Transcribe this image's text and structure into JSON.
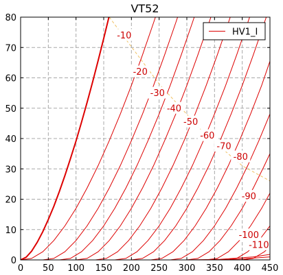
{
  "chart_data": {
    "type": "line",
    "title": "VT52",
    "xlabel": "",
    "ylabel": "",
    "xlim": [
      0,
      450
    ],
    "ylim": [
      0,
      80
    ],
    "x_ticks": [
      0,
      50,
      100,
      150,
      200,
      250,
      300,
      350,
      400,
      450
    ],
    "y_ticks": [
      0,
      10,
      20,
      30,
      40,
      50,
      60,
      70,
      80
    ],
    "grid": true,
    "legend": {
      "placement": "top-right",
      "entries": [
        "HV1_I"
      ]
    },
    "colors": {
      "curve": "#dd0000",
      "grid": "#a8a8a8",
      "load_line": "#f0c060"
    },
    "series": [
      {
        "grid_bias": "0",
        "points": [
          [
            0,
            0
          ],
          [
            10,
            0.9
          ],
          [
            20,
            2.9
          ],
          [
            30,
            5.8
          ],
          [
            40,
            9.3
          ],
          [
            50,
            13.3
          ],
          [
            60,
            17.7
          ],
          [
            70,
            22.6
          ],
          [
            80,
            27.8
          ],
          [
            90,
            33.4
          ],
          [
            100,
            39.2
          ],
          [
            110,
            45.4
          ],
          [
            120,
            51.9
          ],
          [
            130,
            58.7
          ],
          [
            140,
            65.7
          ],
          [
            150,
            73.0
          ],
          [
            160,
            80.5
          ]
        ]
      },
      {
        "grid_bias": "-10",
        "label": "-10",
        "points": [
          [
            0,
            0
          ],
          [
            20,
            0.5
          ],
          [
            40,
            2.7
          ],
          [
            60,
            6.4
          ],
          [
            80,
            11.2
          ],
          [
            100,
            17.0
          ],
          [
            120,
            23.7
          ],
          [
            140,
            31.1
          ],
          [
            160,
            39.3
          ],
          [
            180,
            48.1
          ],
          [
            200,
            57.5
          ],
          [
            220,
            67.6
          ],
          [
            240,
            78.2
          ],
          [
            245,
            80.9
          ]
        ]
      },
      {
        "grid_bias": "-20",
        "label": "-20",
        "points": [
          [
            40,
            0
          ],
          [
            60,
            0.5
          ],
          [
            80,
            2.7
          ],
          [
            100,
            6.4
          ],
          [
            120,
            11.2
          ],
          [
            140,
            17.0
          ],
          [
            160,
            23.7
          ],
          [
            180,
            31.1
          ],
          [
            200,
            39.3
          ],
          [
            220,
            48.1
          ],
          [
            240,
            57.5
          ],
          [
            260,
            67.6
          ],
          [
            280,
            78.2
          ],
          [
            285,
            80.9
          ]
        ]
      },
      {
        "grid_bias": "-30",
        "label": "-30",
        "points": [
          [
            70,
            0
          ],
          [
            90,
            0.5
          ],
          [
            110,
            2.7
          ],
          [
            130,
            6.4
          ],
          [
            150,
            11.2
          ],
          [
            170,
            17.0
          ],
          [
            190,
            23.7
          ],
          [
            210,
            31.1
          ],
          [
            230,
            39.3
          ],
          [
            250,
            48.1
          ],
          [
            270,
            57.5
          ],
          [
            290,
            67.6
          ],
          [
            310,
            78.2
          ],
          [
            315,
            80.9
          ]
        ]
      },
      {
        "grid_bias": "-40",
        "label": "-40",
        "points": [
          [
            100,
            0
          ],
          [
            120,
            0.5
          ],
          [
            140,
            2.7
          ],
          [
            160,
            6.4
          ],
          [
            180,
            11.2
          ],
          [
            200,
            17.0
          ],
          [
            220,
            23.7
          ],
          [
            240,
            31.1
          ],
          [
            260,
            39.3
          ],
          [
            280,
            48.1
          ],
          [
            300,
            57.5
          ],
          [
            320,
            67.6
          ],
          [
            340,
            78.2
          ],
          [
            345,
            80.9
          ]
        ]
      },
      {
        "grid_bias": "-50",
        "label": "-50",
        "points": [
          [
            135,
            0
          ],
          [
            155,
            0.5
          ],
          [
            175,
            2.7
          ],
          [
            195,
            6.4
          ],
          [
            215,
            11.2
          ],
          [
            235,
            17.0
          ],
          [
            255,
            23.7
          ],
          [
            275,
            31.1
          ],
          [
            295,
            39.3
          ],
          [
            315,
            48.1
          ],
          [
            335,
            57.5
          ],
          [
            355,
            67.6
          ],
          [
            375,
            78.2
          ],
          [
            380,
            80.9
          ]
        ]
      },
      {
        "grid_bias": "-60",
        "label": "-60",
        "points": [
          [
            170,
            0
          ],
          [
            190,
            0.5
          ],
          [
            210,
            2.7
          ],
          [
            230,
            6.4
          ],
          [
            250,
            11.2
          ],
          [
            270,
            17.0
          ],
          [
            290,
            23.7
          ],
          [
            310,
            31.1
          ],
          [
            330,
            39.3
          ],
          [
            350,
            48.1
          ],
          [
            370,
            57.5
          ],
          [
            390,
            67.6
          ],
          [
            410,
            78.2
          ],
          [
            415,
            80.9
          ]
        ]
      },
      {
        "grid_bias": "-70",
        "label": "-70",
        "points": [
          [
            200,
            0
          ],
          [
            220,
            0.5
          ],
          [
            240,
            2.7
          ],
          [
            260,
            6.4
          ],
          [
            280,
            11.2
          ],
          [
            300,
            17.0
          ],
          [
            320,
            23.7
          ],
          [
            340,
            31.1
          ],
          [
            360,
            39.3
          ],
          [
            380,
            48.1
          ],
          [
            400,
            57.5
          ],
          [
            420,
            67.6
          ],
          [
            440,
            78.2
          ],
          [
            445,
            80.9
          ]
        ]
      },
      {
        "grid_bias": "-80",
        "label": "-80",
        "points": [
          [
            235,
            0
          ],
          [
            255,
            0.5
          ],
          [
            275,
            2.7
          ],
          [
            295,
            6.4
          ],
          [
            315,
            11.2
          ],
          [
            335,
            17.0
          ],
          [
            355,
            23.7
          ],
          [
            375,
            31.1
          ],
          [
            395,
            39.3
          ],
          [
            415,
            48.1
          ],
          [
            435,
            57.5
          ],
          [
            450,
            65.5
          ]
        ]
      },
      {
        "grid_bias": "-90",
        "label": "-90",
        "points": [
          [
            270,
            0
          ],
          [
            290,
            0.5
          ],
          [
            310,
            2.7
          ],
          [
            330,
            6.4
          ],
          [
            350,
            11.2
          ],
          [
            370,
            17.0
          ],
          [
            390,
            23.7
          ],
          [
            410,
            31.1
          ],
          [
            430,
            39.3
          ],
          [
            450,
            48.1
          ]
        ]
      },
      {
        "grid_bias": "-100",
        "label": "-100",
        "points": [
          [
            300,
            0
          ],
          [
            320,
            0.5
          ],
          [
            340,
            2.7
          ],
          [
            360,
            6.4
          ],
          [
            380,
            11.2
          ],
          [
            400,
            17.0
          ],
          [
            420,
            23.7
          ],
          [
            440,
            31.1
          ],
          [
            450,
            35.0
          ]
        ]
      },
      {
        "grid_bias": "-110",
        "label": "-110",
        "points": [
          [
            335,
            0
          ],
          [
            355,
            0.5
          ],
          [
            375,
            2.7
          ],
          [
            395,
            6.4
          ],
          [
            415,
            11.2
          ],
          [
            435,
            17.0
          ],
          [
            450,
            22.0
          ]
        ]
      },
      {
        "grid_bias": "-120",
        "points": [
          [
            370,
            0
          ],
          [
            390,
            0.5
          ],
          [
            410,
            2.7
          ],
          [
            430,
            6.4
          ],
          [
            450,
            11.2
          ]
        ]
      },
      {
        "grid_bias": "-130",
        "points": [
          [
            400,
            0
          ],
          [
            420,
            0.5
          ],
          [
            440,
            2.7
          ],
          [
            450,
            4.4
          ]
        ]
      },
      {
        "grid_bias": "-140",
        "points": [
          [
            300,
            0
          ],
          [
            360,
            0.2
          ],
          [
            420,
            1.0
          ],
          [
            450,
            1.8
          ]
        ]
      },
      {
        "grid_bias": "-150",
        "points": [
          [
            330,
            0
          ],
          [
            390,
            0.2
          ],
          [
            450,
            1.0
          ]
        ]
      }
    ],
    "curve_labels": [
      {
        "text": "-10",
        "x": 187,
        "y": 74
      },
      {
        "text": "-20",
        "x": 216,
        "y": 62
      },
      {
        "text": "-30",
        "x": 247,
        "y": 55
      },
      {
        "text": "-40",
        "x": 277,
        "y": 50
      },
      {
        "text": "-50",
        "x": 307,
        "y": 45.5
      },
      {
        "text": "-60",
        "x": 337,
        "y": 41
      },
      {
        "text": "-70",
        "x": 367,
        "y": 37.5
      },
      {
        "text": "-80",
        "x": 397,
        "y": 34
      },
      {
        "text": "-90",
        "x": 412,
        "y": 21
      },
      {
        "text": "-100",
        "x": 412,
        "y": 8.3
      },
      {
        "text": "-110",
        "x": 430,
        "y": 5
      }
    ],
    "load_line": [
      [
        160,
        80
      ],
      [
        250,
        58
      ],
      [
        330,
        42
      ],
      [
        400,
        31
      ],
      [
        450,
        26
      ]
    ]
  }
}
